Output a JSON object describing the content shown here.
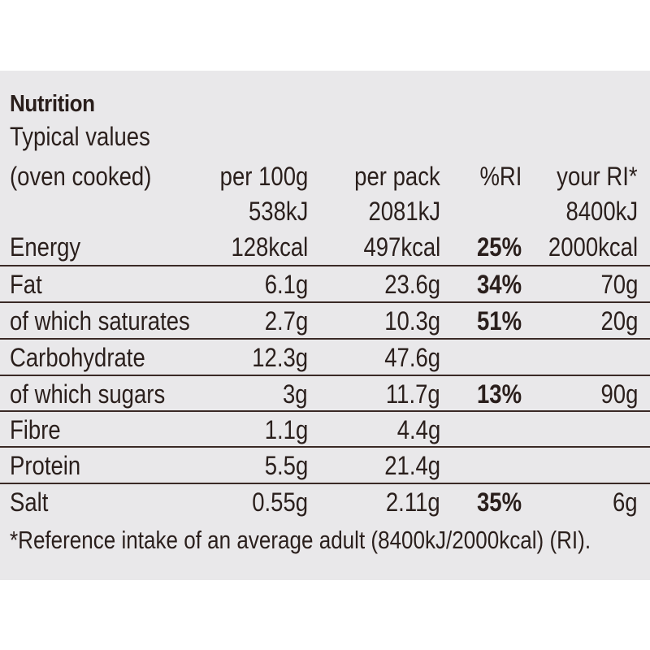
{
  "title": "Nutrition",
  "subtitle": "Typical values",
  "headers": {
    "name": "(oven cooked)",
    "per100g": "per 100g",
    "perPack": "per pack",
    "ri": "%RI",
    "yourRi": "your RI*"
  },
  "energy_kj": {
    "per100g": "538kJ",
    "perPack": "2081kJ",
    "yourRi": "8400kJ"
  },
  "rows": [
    {
      "name": "Energy",
      "per100g": "128kcal",
      "perPack": "497kcal",
      "ri": "25%",
      "yourRi": "2000kcal"
    },
    {
      "name": "Fat",
      "per100g": "6.1g",
      "perPack": "23.6g",
      "ri": "34%",
      "yourRi": "70g"
    },
    {
      "name": "of which saturates",
      "per100g": "2.7g",
      "perPack": "10.3g",
      "ri": "51%",
      "yourRi": "20g"
    },
    {
      "name": "Carbohydrate",
      "per100g": "12.3g",
      "perPack": "47.6g",
      "ri": "",
      "yourRi": ""
    },
    {
      "name": "of which sugars",
      "per100g": "3g",
      "perPack": "11.7g",
      "ri": "13%",
      "yourRi": "90g"
    },
    {
      "name": "Fibre",
      "per100g": "1.1g",
      "perPack": "4.4g",
      "ri": "",
      "yourRi": ""
    },
    {
      "name": "Protein",
      "per100g": "5.5g",
      "perPack": "21.4g",
      "ri": "",
      "yourRi": ""
    },
    {
      "name": "Salt",
      "per100g": "0.55g",
      "perPack": "2.11g",
      "ri": "35%",
      "yourRi": "6g"
    }
  ],
  "footnote": "*Reference intake of an average adult (8400kJ/2000kcal) (RI).",
  "colors": {
    "panel": "#e9e8ea",
    "text": "#2a1f1c",
    "rule": "#3a2a26"
  }
}
